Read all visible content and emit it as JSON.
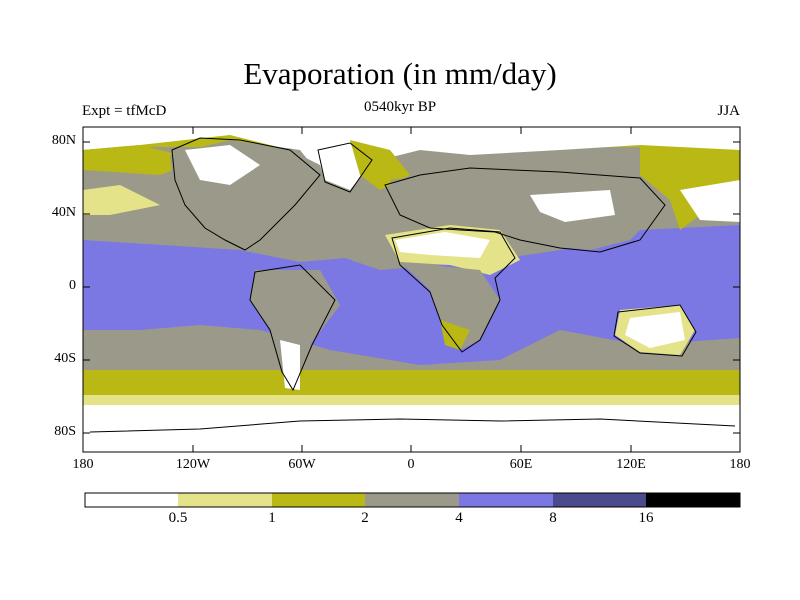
{
  "title": "Evaporation (in mm/day)",
  "subtitle": "0540kyr BP",
  "left_label": "Expt = tfMcD",
  "right_label": "JJA",
  "lat_ticks": [
    "80N",
    "40N",
    "0",
    "40S",
    "80S"
  ],
  "lon_ticks": [
    "180",
    "120W",
    "60W",
    "0",
    "60E",
    "120E",
    "180"
  ],
  "colorbar": {
    "colors": [
      "#ffffff",
      "#e5e38a",
      "#b9b814",
      "#9b9a8a",
      "#7b78e4",
      "#4a4a8c",
      "#000000"
    ],
    "labels": [
      "0.5",
      "1",
      "2",
      "4",
      "8",
      "16"
    ]
  }
}
